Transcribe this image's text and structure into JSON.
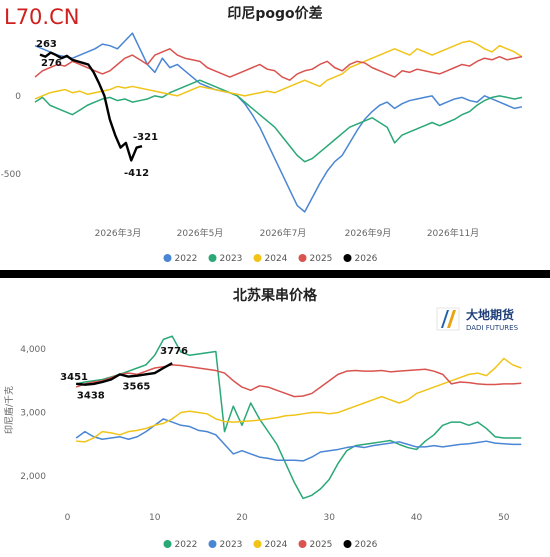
{
  "watermark": "L70.CN",
  "top_chart": {
    "title": "印尼pogo价差",
    "chart_data": {
      "type": "line",
      "title": "印尼pogo价差",
      "xlabel": "",
      "ylabel": "",
      "x_ticks": [
        "2026年3月",
        "2026年5月",
        "2026年7月",
        "2026年9月",
        "2026年11月"
      ],
      "y_ticks": [
        0,
        -500
      ],
      "ylim": [
        -760,
        420
      ],
      "grid": false,
      "legend_position": "bottom",
      "series": [
        {
          "name": "2022",
          "color": "#4a86d4",
          "values": [
            320,
            300,
            280,
            260,
            250,
            240,
            260,
            280,
            300,
            330,
            320,
            300,
            350,
            400,
            300,
            200,
            150,
            240,
            180,
            200,
            160,
            120,
            80,
            60,
            40,
            30,
            20,
            0,
            -50,
            -120,
            -200,
            -300,
            -400,
            -500,
            -600,
            -700,
            -740,
            -650,
            -560,
            -480,
            -420,
            -380,
            -300,
            -220,
            -150,
            -100,
            -60,
            -40,
            -80,
            -50,
            -30,
            -20,
            -10,
            0,
            -60,
            -40,
            -20,
            -10,
            -30,
            -40,
            0,
            -20,
            -40,
            -60,
            -80,
            -70
          ]
        },
        {
          "name": "2023",
          "color": "#2aa876",
          "values": [
            -40,
            -10,
            -60,
            -80,
            -100,
            -120,
            -90,
            -60,
            -40,
            -20,
            -10,
            -30,
            -20,
            -40,
            -30,
            -20,
            0,
            -10,
            20,
            40,
            60,
            80,
            100,
            80,
            60,
            40,
            20,
            0,
            -40,
            -80,
            -120,
            -160,
            -200,
            -260,
            -320,
            -380,
            -420,
            -400,
            -360,
            -320,
            -280,
            -240,
            -200,
            -180,
            -160,
            -140,
            -170,
            -200,
            -300,
            -250,
            -230,
            -210,
            -190,
            -170,
            -190,
            -170,
            -150,
            -120,
            -100,
            -60,
            -30,
            -10,
            0,
            -10,
            -20,
            -10
          ]
        },
        {
          "name": "2024",
          "color": "#f0c419",
          "values": [
            -20,
            0,
            20,
            30,
            40,
            20,
            30,
            10,
            20,
            30,
            40,
            60,
            50,
            60,
            50,
            40,
            30,
            20,
            10,
            0,
            20,
            40,
            60,
            50,
            40,
            30,
            20,
            10,
            0,
            10,
            20,
            30,
            20,
            40,
            60,
            80,
            100,
            80,
            60,
            100,
            120,
            140,
            180,
            200,
            220,
            240,
            260,
            280,
            300,
            280,
            260,
            300,
            280,
            260,
            280,
            300,
            320,
            340,
            350,
            330,
            300,
            280,
            320,
            300,
            280,
            250
          ]
        },
        {
          "name": "2025",
          "color": "#d9534f",
          "values": [
            120,
            160,
            180,
            200,
            190,
            220,
            200,
            180,
            160,
            140,
            160,
            200,
            240,
            260,
            230,
            200,
            260,
            280,
            300,
            260,
            240,
            230,
            220,
            180,
            160,
            140,
            120,
            140,
            160,
            180,
            200,
            170,
            160,
            120,
            100,
            140,
            160,
            170,
            200,
            220,
            180,
            160,
            200,
            220,
            210,
            180,
            160,
            140,
            120,
            160,
            150,
            170,
            160,
            150,
            140,
            160,
            180,
            200,
            190,
            220,
            240,
            230,
            250,
            230,
            240,
            250
          ]
        },
        {
          "name": "2026",
          "color": "#000000",
          "values": [
            263,
            250,
            276,
            260,
            240,
            255,
            230,
            220,
            210,
            200,
            150,
            80,
            0,
            -150,
            -250,
            -330,
            -300,
            -412,
            -330,
            -321
          ]
        }
      ],
      "data_labels": [
        {
          "series": "2026",
          "label": "263",
          "value": 263
        },
        {
          "series": "2026",
          "label": "276",
          "value": 276
        },
        {
          "series": "2026",
          "label": "-321",
          "value": -321
        },
        {
          "series": "2026",
          "label": "-412",
          "value": -412
        }
      ]
    }
  },
  "bottom_chart": {
    "title": "北苏果串价格",
    "logo_cn": "大地期货",
    "logo_en": "DADI FUTURES",
    "ylabel": "印尼盾/千克",
    "chart_data": {
      "type": "line",
      "title": "北苏果串价格",
      "xlabel": "",
      "ylabel": "印尼盾/千克",
      "x_ticks": [
        0,
        10,
        20,
        30,
        40,
        50
      ],
      "y_ticks": [
        2000,
        3000,
        4000
      ],
      "xlim": [
        -2,
        53
      ],
      "ylim": [
        1500,
        4250
      ],
      "grid": false,
      "legend_position": "bottom",
      "series": [
        {
          "name": "2022",
          "color": "#2aa876",
          "x": [
            1,
            2,
            3,
            4,
            5,
            6,
            7,
            8,
            9,
            10,
            11,
            12,
            13,
            14,
            15,
            16,
            17,
            18,
            19,
            20,
            21,
            22,
            23,
            24,
            25,
            26,
            27,
            28,
            29,
            30,
            31,
            32,
            33,
            34,
            35,
            36,
            37,
            38,
            39,
            40,
            41,
            42,
            43,
            44,
            45,
            46,
            47,
            48,
            49,
            50,
            51,
            52
          ],
          "values": [
            3450,
            3480,
            3500,
            3520,
            3560,
            3600,
            3650,
            3700,
            3750,
            3900,
            4150,
            4200,
            3950,
            3900,
            3920,
            3940,
            3960,
            2700,
            3100,
            2800,
            3150,
            2900,
            2700,
            2500,
            2200,
            1900,
            1650,
            1700,
            1800,
            1950,
            2200,
            2400,
            2480,
            2500,
            2520,
            2540,
            2560,
            2500,
            2450,
            2420,
            2550,
            2650,
            2800,
            2850,
            2850,
            2800,
            2850,
            2750,
            2620,
            2600,
            2600,
            2600
          ]
        },
        {
          "name": "2023",
          "color": "#4a86d4",
          "values": [
            2600,
            2700,
            2620,
            2580,
            2600,
            2620,
            2580,
            2620,
            2700,
            2800,
            2900,
            2850,
            2800,
            2780,
            2720,
            2700,
            2650,
            2500,
            2350,
            2400,
            2350,
            2300,
            2280,
            2250,
            2250,
            2250,
            2240,
            2300,
            2380,
            2400,
            2420,
            2450,
            2470,
            2450,
            2480,
            2500,
            2520,
            2540,
            2500,
            2460,
            2460,
            2480,
            2460,
            2480,
            2500,
            2510,
            2530,
            2550,
            2520,
            2510,
            2500,
            2500
          ]
        },
        {
          "name": "2024",
          "color": "#f0c419",
          "values": [
            2550,
            2540,
            2600,
            2700,
            2680,
            2650,
            2700,
            2720,
            2750,
            2800,
            2830,
            2900,
            3000,
            3020,
            3000,
            2980,
            2900,
            2860,
            2850,
            2860,
            2870,
            2880,
            2900,
            2920,
            2950,
            2960,
            2980,
            3000,
            3000,
            2980,
            3000,
            3050,
            3100,
            3150,
            3200,
            3250,
            3200,
            3150,
            3200,
            3300,
            3350,
            3400,
            3450,
            3500,
            3550,
            3600,
            3620,
            3580,
            3700,
            3850,
            3750,
            3700
          ]
        },
        {
          "name": "2025",
          "color": "#d9534f",
          "values": [
            3400,
            3450,
            3480,
            3500,
            3550,
            3600,
            3620,
            3600,
            3650,
            3700,
            3720,
            3750,
            3740,
            3720,
            3700,
            3680,
            3660,
            3620,
            3500,
            3400,
            3350,
            3420,
            3400,
            3350,
            3300,
            3250,
            3260,
            3300,
            3400,
            3500,
            3600,
            3650,
            3660,
            3650,
            3650,
            3660,
            3640,
            3650,
            3660,
            3670,
            3680,
            3650,
            3600,
            3450,
            3480,
            3470,
            3450,
            3440,
            3440,
            3450,
            3450,
            3460
          ]
        },
        {
          "name": "2026",
          "color": "#000000",
          "values": [
            3451,
            3438,
            3450,
            3480,
            3520,
            3600,
            3565,
            3580,
            3600,
            3620,
            3700,
            3776
          ]
        }
      ],
      "data_labels": [
        {
          "series": "2026",
          "label": "3451",
          "value": 3451
        },
        {
          "series": "2026",
          "label": "3438",
          "value": 3438
        },
        {
          "series": "2026",
          "label": "3565",
          "value": 3565
        },
        {
          "series": "2026",
          "label": "3776",
          "value": 3776
        }
      ]
    }
  }
}
